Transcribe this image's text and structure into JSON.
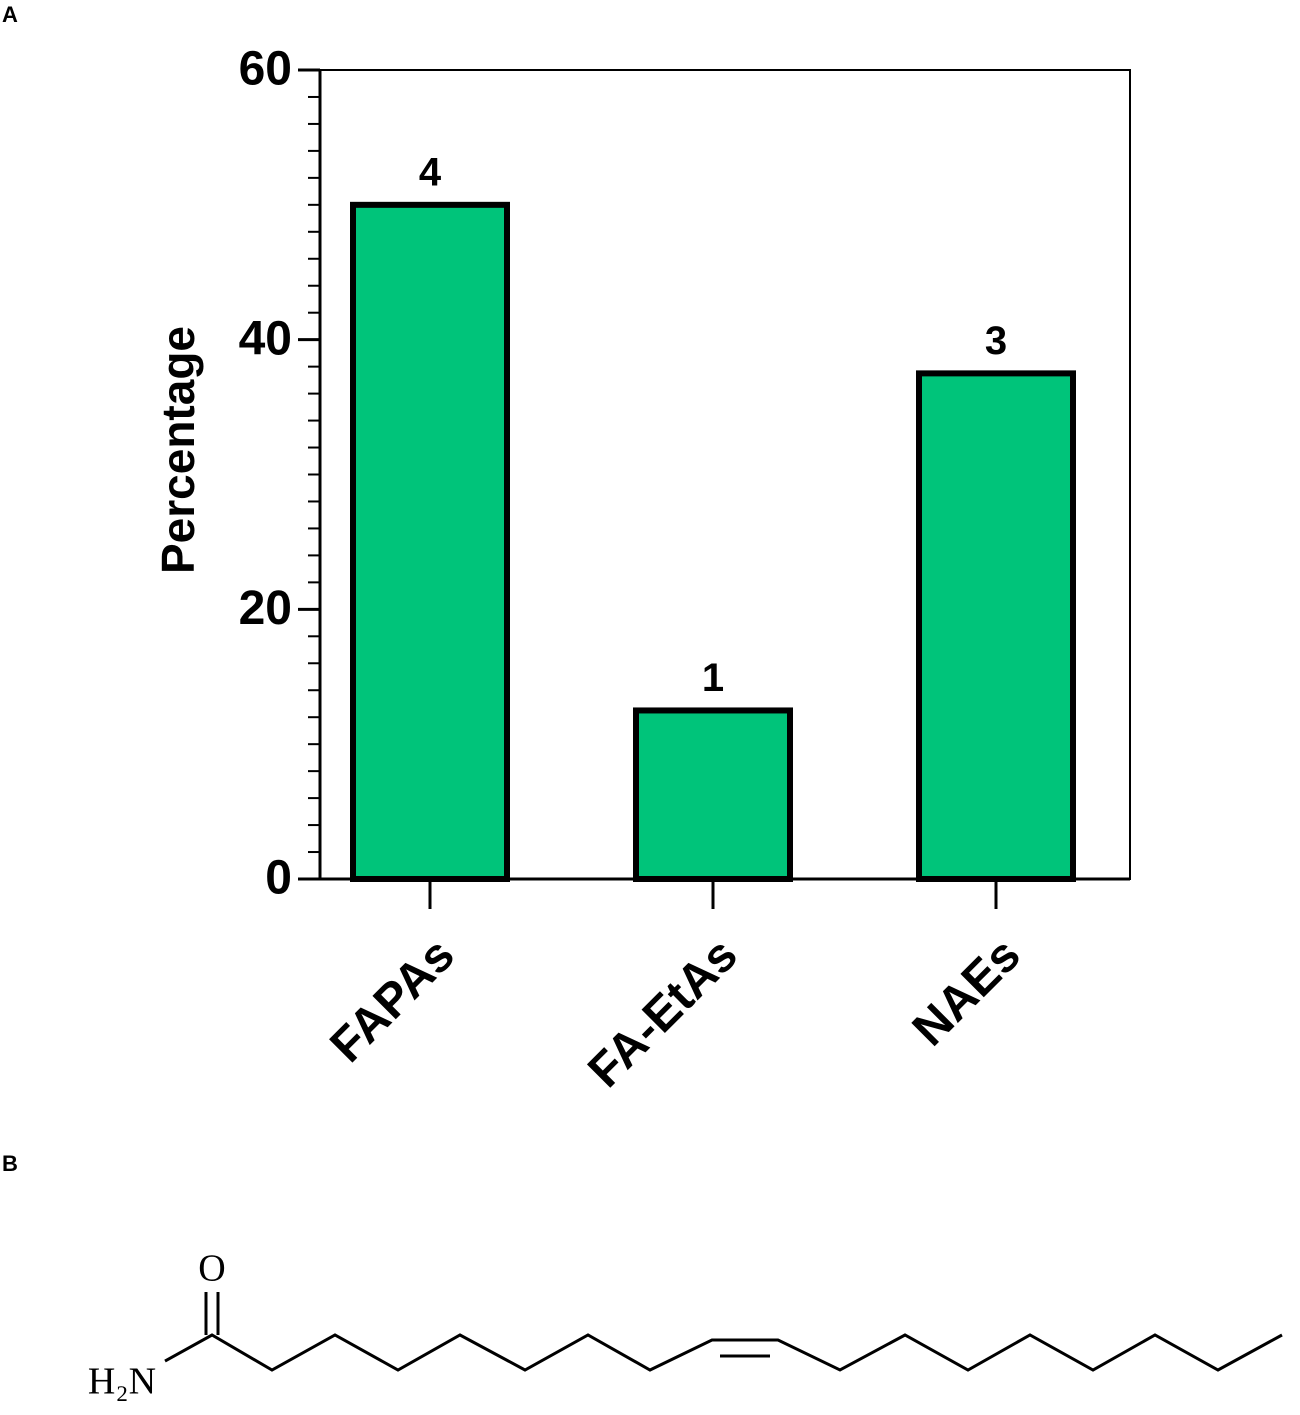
{
  "panels": {
    "a": "A",
    "b": "B"
  },
  "chart_data": {
    "type": "bar",
    "y_label": "Percentage",
    "categories": [
      "FAPAs",
      "FA-EtAs",
      "NAEs"
    ],
    "values": [
      50,
      12.5,
      37.5
    ],
    "counts": [
      4,
      1,
      3
    ],
    "color": "#00c47a",
    "ylim": [
      0,
      60
    ],
    "yticks": [
      0,
      20,
      40,
      60
    ],
    "yminorticks": [
      2,
      4,
      6,
      8,
      10,
      12,
      14,
      16,
      18,
      22,
      24,
      26,
      28,
      30,
      32,
      34,
      36,
      38,
      42,
      44,
      46,
      48,
      50,
      52,
      54,
      56,
      58
    ]
  },
  "molecule": {
    "oxygen": "O",
    "amine": "H₂N"
  }
}
